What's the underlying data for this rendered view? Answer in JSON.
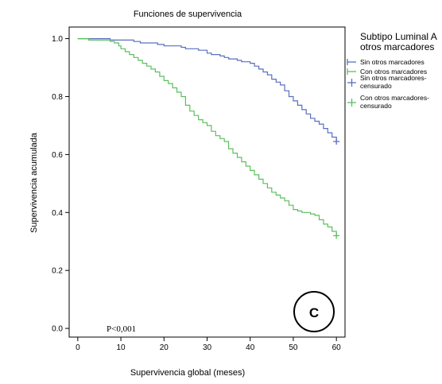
{
  "chart_data": {
    "type": "line",
    "title": "Funciones de supervivencia",
    "xlabel": "Supervivencia global (meses)",
    "ylabel": "Supervivencia acumulada",
    "xlim": [
      -2,
      62
    ],
    "ylim": [
      -0.03,
      1.04
    ],
    "xticks": [
      0,
      10,
      20,
      30,
      40,
      50,
      60
    ],
    "yticks": [
      0.0,
      0.2,
      0.4,
      0.6,
      0.8,
      1.0
    ],
    "xtick_labels": [
      "0",
      "10",
      "20",
      "30",
      "40",
      "50",
      "60"
    ],
    "ytick_labels": [
      "0.0",
      "0.2",
      "0.4",
      "0.6",
      "0.8",
      "1.0"
    ],
    "grid": false,
    "legend": {
      "position": "right",
      "title_line1": "Subtipo Luminal A",
      "title_line2": "otros marcadores",
      "entries": [
        {
          "label": "Sin otros marcadores",
          "series": 0,
          "kind": "line"
        },
        {
          "label": "Con otros marcadores",
          "series": 1,
          "kind": "line"
        },
        {
          "label_line1": "Sin otros marcadores-",
          "label_line2": "censurado",
          "series": 0,
          "kind": "censor"
        },
        {
          "label_line1": "Con otros marcadores-",
          "label_line2": "censurado",
          "series": 1,
          "kind": "censor"
        }
      ]
    },
    "annotation": "P<0,001",
    "panel_label": "C",
    "series": [
      {
        "name": "Sin otros marcadores",
        "color": "#5a6fbf",
        "x": [
          0,
          7.5,
          13,
          14.5,
          18.5,
          20,
          24,
          25,
          28,
          30,
          31,
          33,
          34,
          35,
          37,
          38,
          40,
          41,
          42,
          43,
          44,
          45,
          46,
          47,
          48,
          49,
          50,
          51,
          52,
          53,
          54,
          55,
          56,
          57,
          58,
          59,
          60
        ],
        "y": [
          1.0,
          0.995,
          0.99,
          0.985,
          0.98,
          0.975,
          0.97,
          0.965,
          0.96,
          0.95,
          0.945,
          0.94,
          0.935,
          0.93,
          0.925,
          0.92,
          0.915,
          0.905,
          0.895,
          0.885,
          0.875,
          0.86,
          0.85,
          0.84,
          0.82,
          0.8,
          0.785,
          0.77,
          0.755,
          0.74,
          0.725,
          0.715,
          0.705,
          0.69,
          0.675,
          0.66,
          0.645
        ],
        "censor_x": [
          60
        ],
        "censor_y": [
          0.645
        ]
      },
      {
        "name": "Con otros marcadores",
        "color": "#5cbf5e",
        "x": [
          0,
          2.5,
          7.5,
          8.5,
          9.5,
          10,
          11,
          12,
          13,
          14,
          15,
          16,
          17,
          18,
          19,
          20,
          21,
          22,
          23,
          24,
          25,
          26,
          27,
          28,
          29,
          30,
          31,
          32,
          33,
          34,
          35,
          36,
          37,
          38,
          39,
          40,
          41,
          42,
          43,
          44,
          45,
          46,
          47,
          48,
          49,
          50,
          51,
          52,
          53,
          54,
          55,
          56,
          57,
          58,
          59,
          60
        ],
        "y": [
          1.0,
          0.995,
          0.99,
          0.985,
          0.975,
          0.965,
          0.955,
          0.945,
          0.935,
          0.925,
          0.915,
          0.905,
          0.895,
          0.885,
          0.87,
          0.855,
          0.845,
          0.83,
          0.815,
          0.8,
          0.77,
          0.75,
          0.735,
          0.72,
          0.71,
          0.7,
          0.68,
          0.665,
          0.655,
          0.645,
          0.62,
          0.605,
          0.59,
          0.575,
          0.56,
          0.545,
          0.53,
          0.515,
          0.5,
          0.485,
          0.47,
          0.46,
          0.45,
          0.44,
          0.425,
          0.41,
          0.405,
          0.4,
          0.4,
          0.395,
          0.39,
          0.375,
          0.36,
          0.35,
          0.335,
          0.32
        ],
        "censor_x": [
          60
        ],
        "censor_y": [
          0.32
        ]
      }
    ]
  }
}
